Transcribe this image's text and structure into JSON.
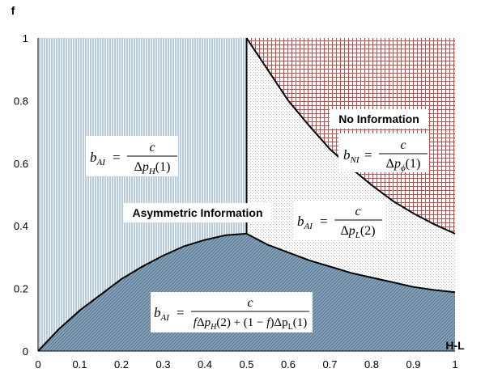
{
  "chart_data": {
    "type": "area",
    "xlabel": "H-L",
    "ylabel": "f",
    "xlim": [
      0,
      1
    ],
    "ylim": [
      0,
      1
    ],
    "x_ticks": [
      "0",
      "0.1",
      "0.2",
      "0.3",
      "0.4",
      "0.5",
      "0.6",
      "0.7",
      "0.8",
      "0.9",
      "1"
    ],
    "y_ticks": [
      "0",
      "0.2",
      "0.4",
      "0.6",
      "0.8",
      "1"
    ],
    "boundaries": {
      "vertical_divider_x": 0.5,
      "lower_curve": {
        "x": [
          0,
          0.05,
          0.1,
          0.15,
          0.2,
          0.25,
          0.3,
          0.35,
          0.4,
          0.45,
          0.5,
          0.55,
          0.6,
          0.65,
          0.7,
          0.75,
          0.8,
          0.85,
          0.9,
          0.95,
          1.0
        ],
        "y": [
          0,
          0.07,
          0.13,
          0.18,
          0.23,
          0.27,
          0.305,
          0.335,
          0.355,
          0.37,
          0.375,
          0.34,
          0.315,
          0.29,
          0.27,
          0.25,
          0.235,
          0.22,
          0.205,
          0.195,
          0.188
        ]
      },
      "upper_curve": {
        "x": [
          0.5,
          0.55,
          0.6,
          0.65,
          0.7,
          0.75,
          0.8,
          0.85,
          0.9,
          0.95,
          1.0
        ],
        "y": [
          1.0,
          0.9,
          0.8,
          0.72,
          0.645,
          0.585,
          0.53,
          0.48,
          0.44,
          0.405,
          0.375
        ]
      }
    },
    "regions": [
      {
        "name": "No Information",
        "color": "#c0504d",
        "pattern": "grid",
        "formula": {
          "lhs": "b_NI",
          "num": "c",
          "den": "Δp_ϕ(1)"
        }
      },
      {
        "name": "Asymmetric Information",
        "color": "#7f9fb5",
        "pattern": "vertical-lines",
        "formula": {
          "lhs": "b_AI",
          "num": "c",
          "den": "Δp_H(1)"
        }
      },
      {
        "name": "",
        "color": "#9fb7c7",
        "pattern": "dots",
        "formula": {
          "lhs": "b_AI",
          "num": "c",
          "den": "Δp_L(2)"
        }
      },
      {
        "name": "",
        "color": "#4f6f8f",
        "pattern": "diagonal-lines",
        "formula": {
          "lhs": "b_AI",
          "num": "c",
          "den": "fΔp_H(2) + (1 − f)Δp_L(1)"
        }
      }
    ]
  }
}
